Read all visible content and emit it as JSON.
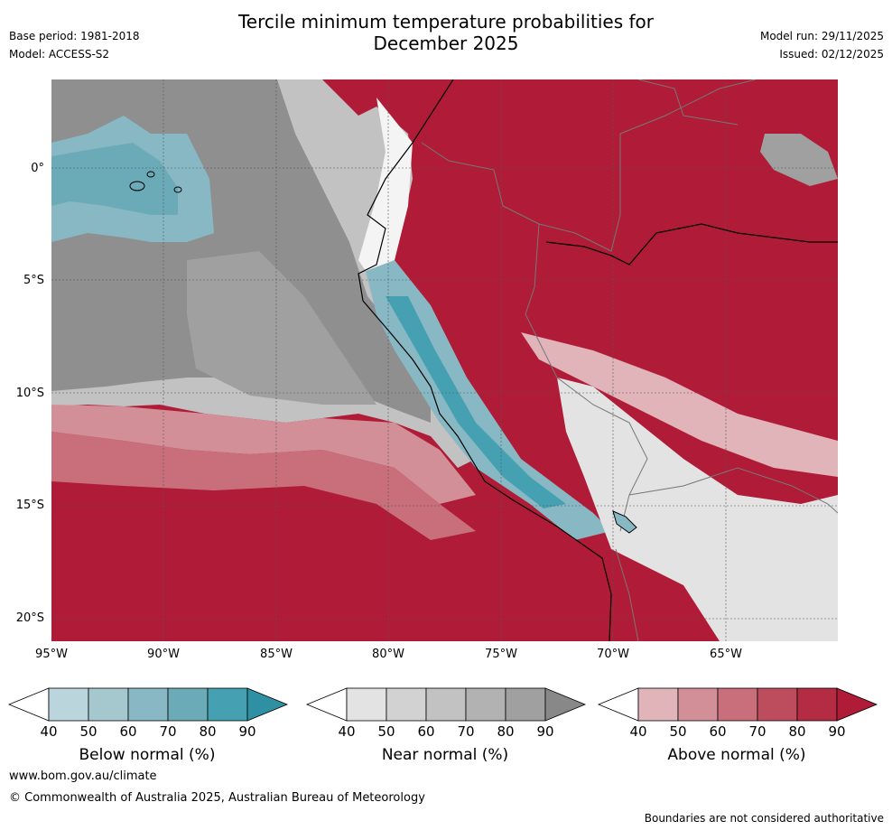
{
  "title": {
    "line1": "Tercile minimum temperature probabilities for",
    "line2": "December 2025"
  },
  "meta": {
    "base_period": "Base period: 1981-2018",
    "model": "Model: ACCESS-S2",
    "model_run": "Model run: 29/11/2025",
    "issued": "Issued: 02/12/2025"
  },
  "axes": {
    "lat_labels": [
      "0°",
      "5°S",
      "10°S",
      "15°S",
      "20°S"
    ],
    "lon_labels": [
      "95°W",
      "90°W",
      "85°W",
      "80°W",
      "75°W",
      "70°W",
      "65°W"
    ]
  },
  "colorbars": [
    {
      "label": "Below normal (%)",
      "ticks": [
        "40",
        "50",
        "60",
        "70",
        "80",
        "90"
      ],
      "colors": [
        "#ffffff",
        "#bad5dc",
        "#a5c8cf",
        "#88b8c3",
        "#6aabb7",
        "#45a1b1",
        "#2f8fa3"
      ]
    },
    {
      "label": "Near normal (%)",
      "ticks": [
        "40",
        "50",
        "60",
        "70",
        "80",
        "90"
      ],
      "colors": [
        "#ffffff",
        "#e3e3e3",
        "#d2d2d2",
        "#c2c2c2",
        "#b2b2b2",
        "#a0a0a0",
        "#888888"
      ]
    },
    {
      "label": "Above normal (%)",
      "ticks": [
        "40",
        "50",
        "60",
        "70",
        "80",
        "90"
      ],
      "colors": [
        "#ffffff",
        "#e1b4ba",
        "#d38f98",
        "#c86f7b",
        "#bd4c5d",
        "#b42c43",
        "#b01c37"
      ]
    }
  ],
  "footer": {
    "url": "www.bom.gov.au/climate",
    "copyright": "© Commonwealth of Australia 2025, Australian Bureau of Meteorology",
    "note": "Boundaries are not considered authoritative"
  }
}
